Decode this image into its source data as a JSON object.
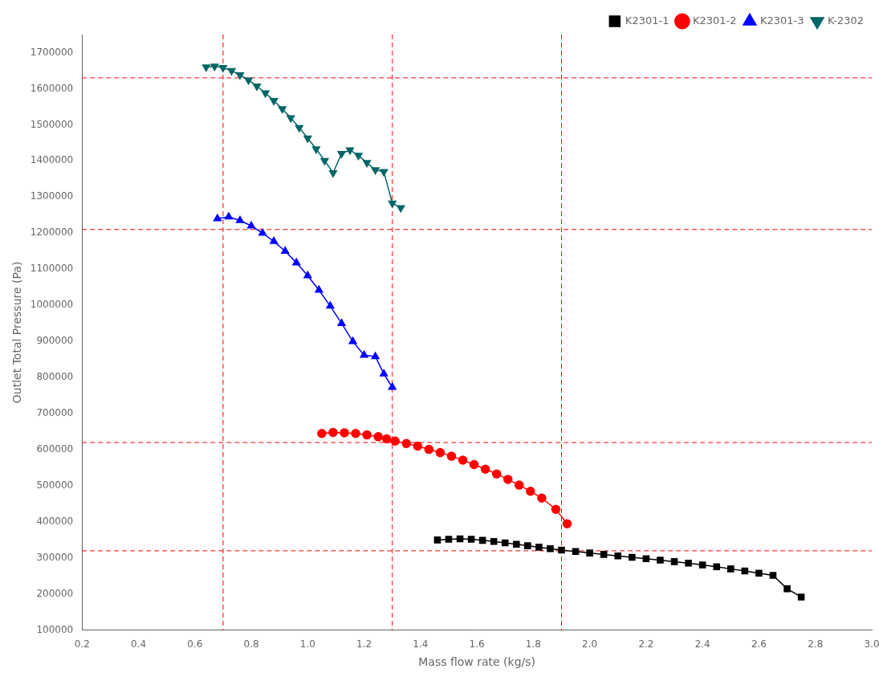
{
  "chart_data": {
    "type": "line",
    "xlabel": "Mass flow rate (kg/s)",
    "ylabel": "Outlet Total Pressure (Pa)",
    "xlim": [
      0.2,
      3.0
    ],
    "ylim": [
      100000,
      1750000
    ],
    "xticks": [
      0.2,
      0.4,
      0.6,
      0.8,
      {
        "value": 1.0,
        "label": "1.0"
      },
      1.2,
      1.4,
      1.6,
      1.8,
      {
        "value": 2.0,
        "label": "2.0"
      },
      2.2,
      2.4,
      2.6,
      2.8,
      {
        "value": 3.0,
        "label": "3.0"
      }
    ],
    "yticks": [
      100000,
      200000,
      300000,
      400000,
      500000,
      600000,
      700000,
      800000,
      900000,
      1000000,
      1100000,
      1200000,
      1300000,
      1400000,
      1500000,
      1600000,
      1700000
    ],
    "grid": false,
    "legend": "upper right",
    "reference_lines": {
      "x": [
        0.7,
        1.3,
        1.9
      ],
      "y": [
        320000,
        620000,
        1210000,
        1630000
      ],
      "color": "#ff0000",
      "line_style": "dashed"
    },
    "series": [
      {
        "name": "K2301-1",
        "color": "#000000",
        "marker": "square",
        "x": [
          1.46,
          1.5,
          1.54,
          1.58,
          1.62,
          1.66,
          1.7,
          1.74,
          1.78,
          1.82,
          1.86,
          1.9,
          1.95,
          2.0,
          2.05,
          2.1,
          2.15,
          2.2,
          2.25,
          2.3,
          2.35,
          2.4,
          2.45,
          2.5,
          2.55,
          2.6,
          2.65,
          2.7,
          2.75
        ],
        "values": [
          350000,
          352000,
          353000,
          352000,
          349000,
          346000,
          342000,
          338000,
          334000,
          330000,
          326000,
          322000,
          318000,
          314000,
          310000,
          306000,
          302000,
          298000,
          294000,
          290000,
          286000,
          281000,
          276000,
          270000,
          264000,
          258000,
          252000,
          215000,
          192000
        ]
      },
      {
        "name": "K2301-2",
        "color": "#ff0000",
        "marker": "circle",
        "x": [
          1.05,
          1.09,
          1.13,
          1.17,
          1.21,
          1.25,
          1.28,
          1.31,
          1.35,
          1.39,
          1.43,
          1.47,
          1.51,
          1.55,
          1.59,
          1.63,
          1.67,
          1.71,
          1.75,
          1.79,
          1.83,
          1.88,
          1.92
        ],
        "values": [
          645000,
          648000,
          647000,
          645000,
          641000,
          636000,
          630000,
          624000,
          617000,
          610000,
          601000,
          592000,
          582000,
          571000,
          559000,
          546000,
          533000,
          518000,
          502000,
          485000,
          466000,
          435000,
          395000
        ]
      },
      {
        "name": "K2301-3",
        "color": "#0000ff",
        "marker": "triangle_up",
        "x": [
          0.68,
          0.72,
          0.76,
          0.8,
          0.84,
          0.88,
          0.92,
          0.96,
          1.0,
          1.04,
          1.08,
          1.12,
          1.16,
          1.2,
          1.24,
          1.27,
          1.3
        ],
        "values": [
          1240000,
          1245000,
          1235000,
          1220000,
          1200000,
          1177000,
          1150000,
          1118000,
          1082000,
          1042000,
          998000,
          950000,
          900000,
          862000,
          858000,
          810000,
          773000
        ]
      },
      {
        "name": "K-2302",
        "color": "#006666",
        "marker": "triangle_down",
        "x": [
          0.64,
          0.67,
          0.7,
          0.73,
          0.76,
          0.79,
          0.82,
          0.85,
          0.88,
          0.91,
          0.94,
          0.97,
          1.0,
          1.03,
          1.06,
          1.09,
          1.12,
          1.15,
          1.18,
          1.21,
          1.24,
          1.27,
          1.3,
          1.33
        ],
        "values": [
          1660000,
          1662000,
          1658000,
          1650000,
          1638000,
          1624000,
          1607000,
          1588000,
          1567000,
          1544000,
          1519000,
          1492000,
          1463000,
          1433000,
          1401000,
          1367000,
          1420000,
          1430000,
          1415000,
          1395000,
          1375000,
          1370000,
          1283000,
          1270000
        ]
      }
    ]
  }
}
